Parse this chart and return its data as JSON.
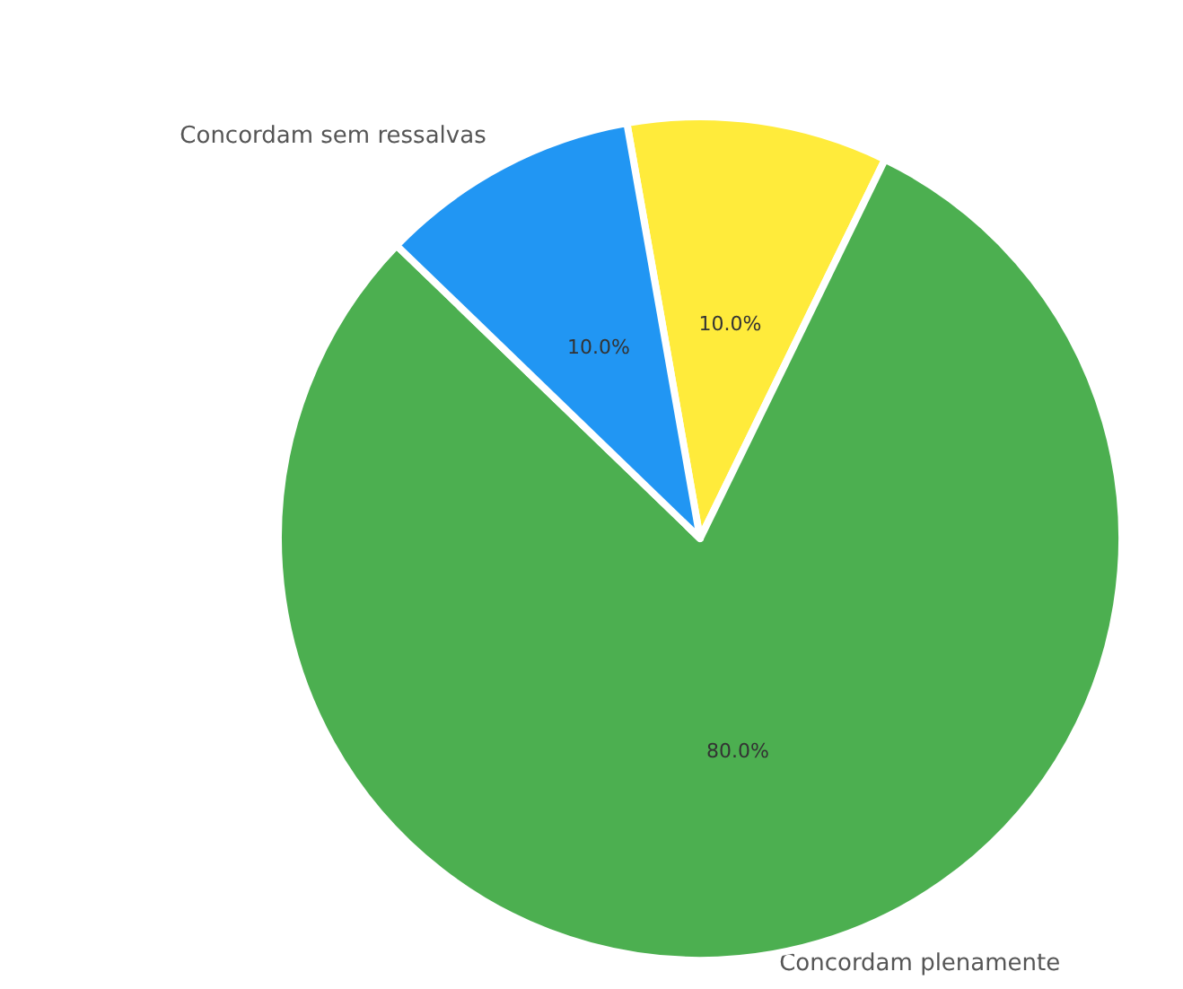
{
  "chart_data": {
    "type": "pie",
    "categories": [
      null,
      "Concordam plenamente",
      "Concordam sem ressalvas"
    ],
    "values": [
      10,
      80,
      10
    ],
    "colors": [
      "#ffeb3b",
      "#4caf50",
      "#2196f3"
    ],
    "value_labels": [
      "10.0%",
      "80.0%",
      "10.0%"
    ]
  }
}
